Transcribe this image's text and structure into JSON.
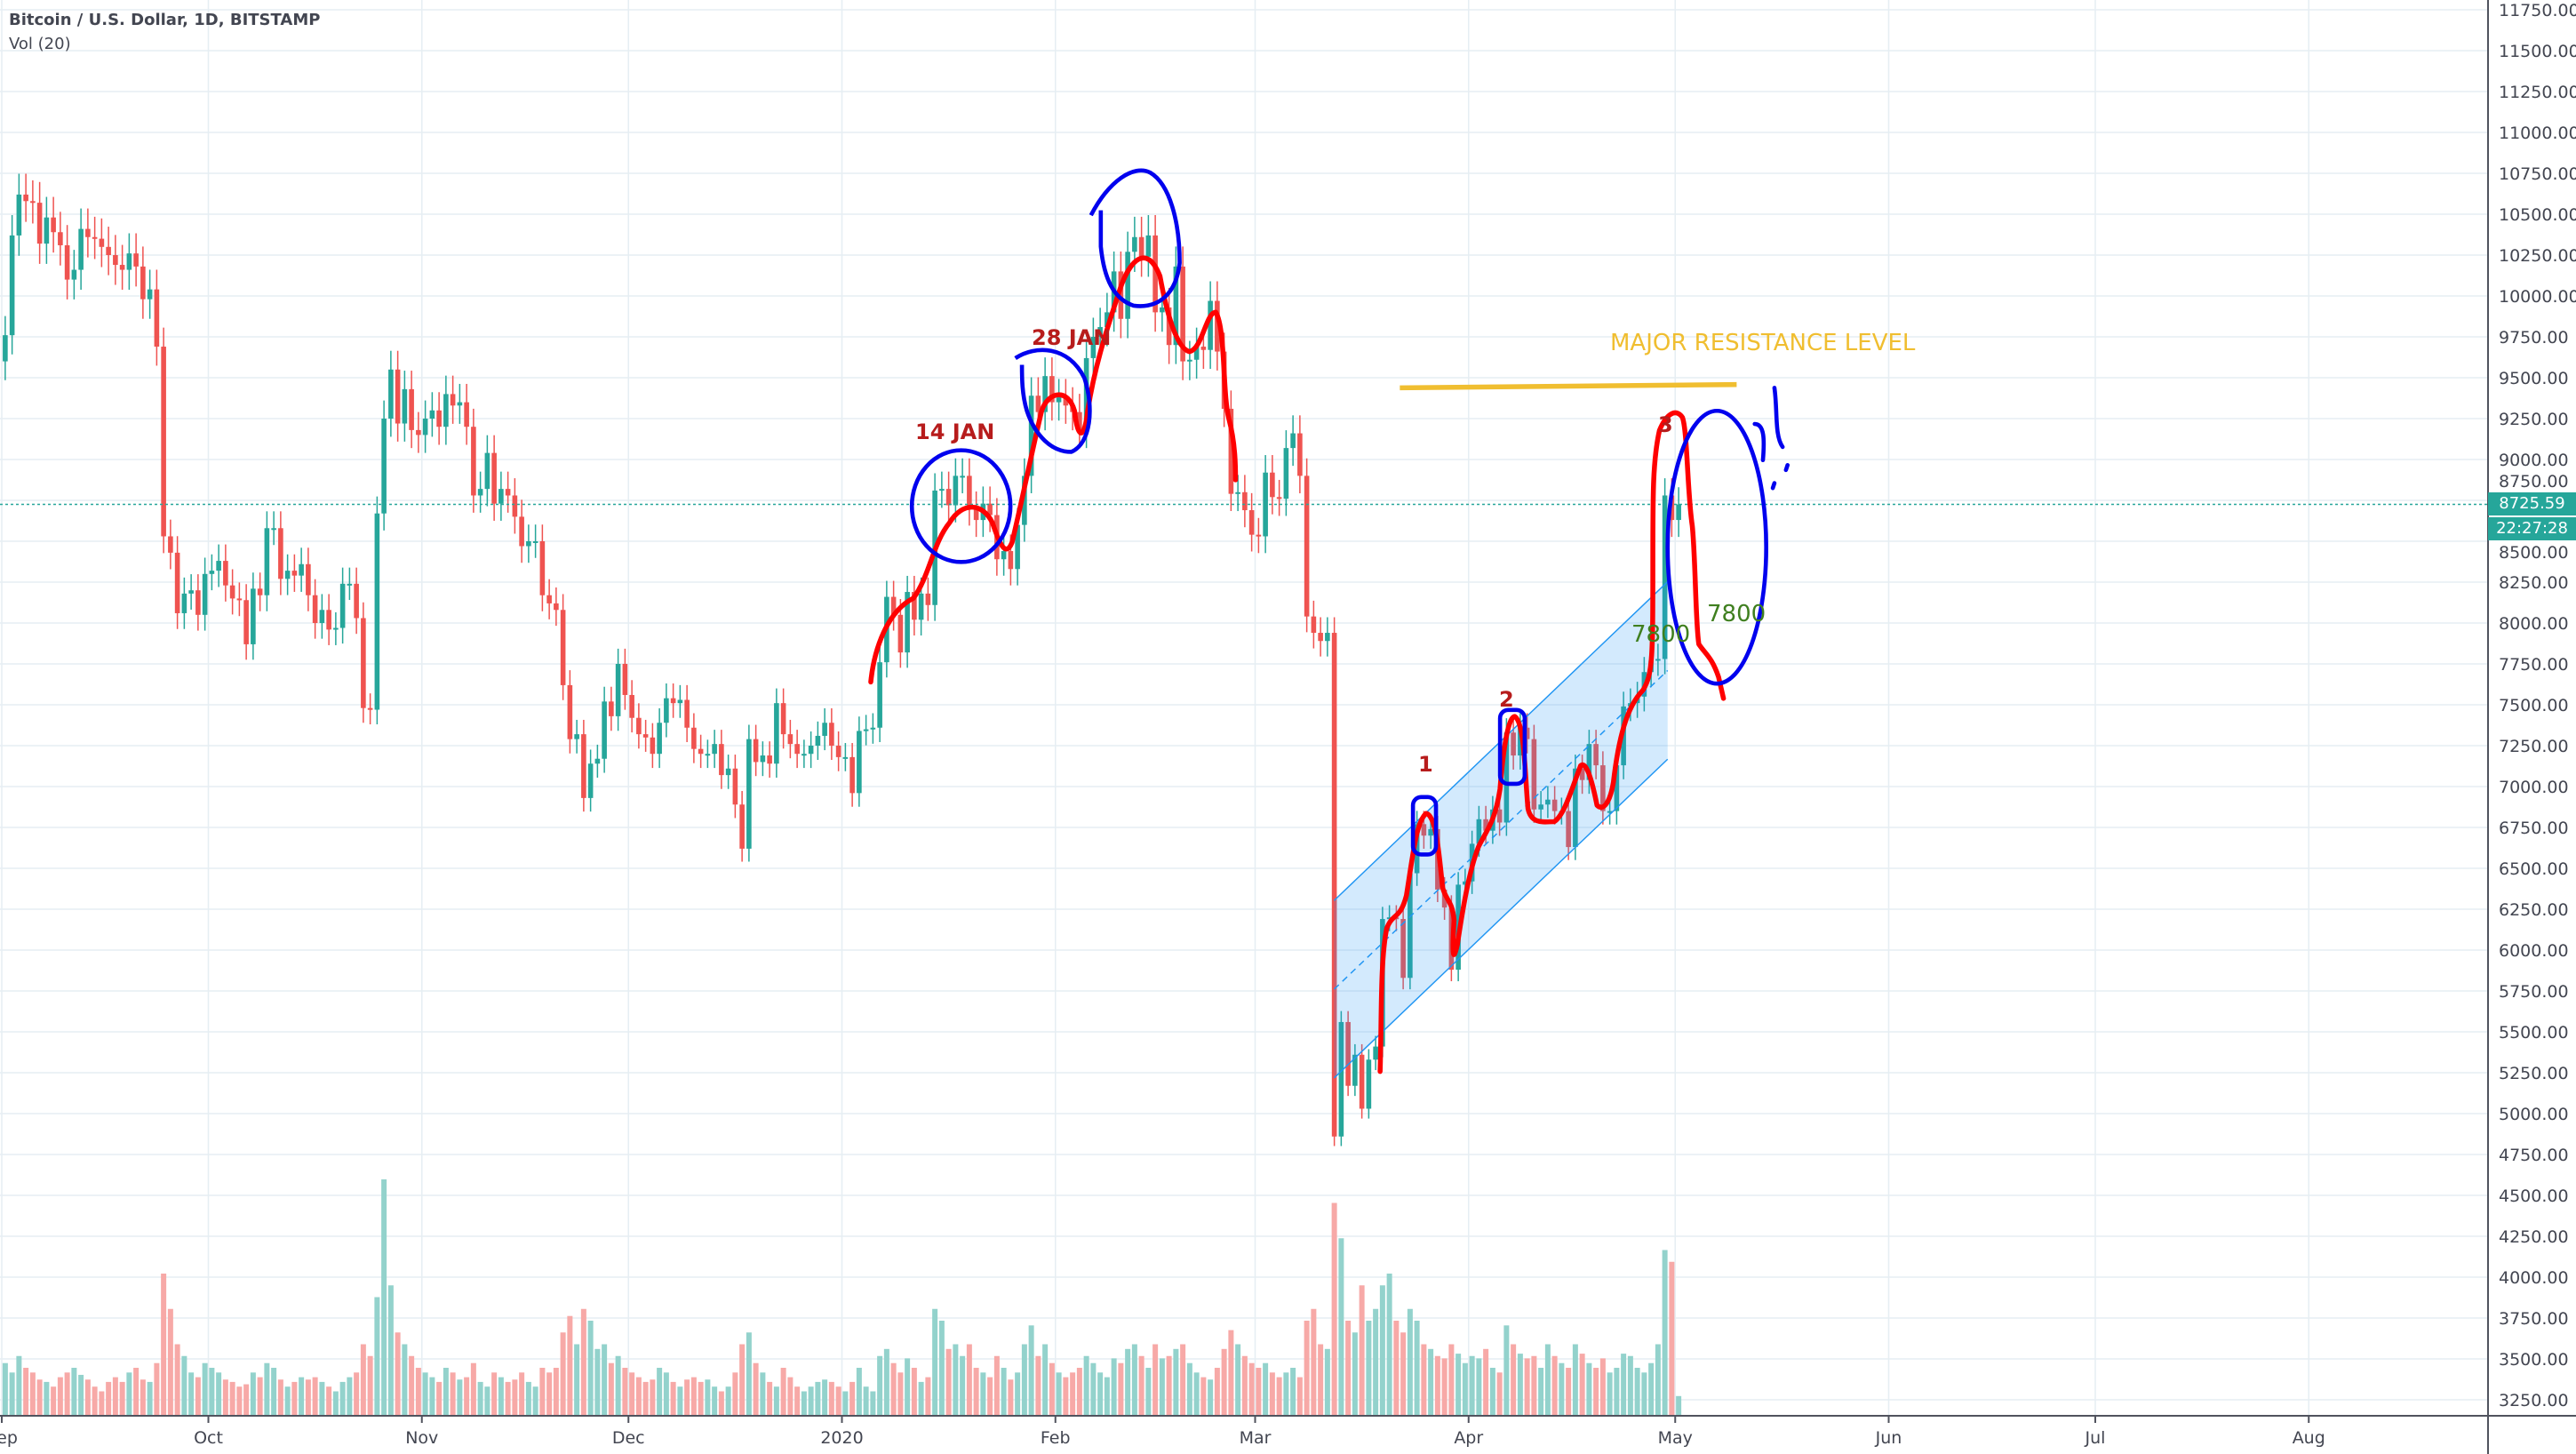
{
  "header": {
    "title": "Bitcoin / U.S. Dollar, 1D, BITSTAMP",
    "volume_indicator": "Vol (20)"
  },
  "price_tag": {
    "last_price": "8725.59",
    "countdown": "22:27:28",
    "color": "#26a69a"
  },
  "colors": {
    "up": "#26a69a",
    "down": "#ef5350",
    "up_volume": "#93d2cc",
    "down_volume": "#f7a9a7",
    "grid": "#e6eef3",
    "resistance": "#f0be30",
    "annotation_red": "#ff0000",
    "annotation_blue": "#0000ee",
    "channel": "#2196f3",
    "label_red": "#b71c1c",
    "label_green": "#3f7f1f"
  },
  "annotations": {
    "resistance_label": "MAJOR RESISTANCE LEVEL",
    "resistance_price": 9480,
    "label_14jan": "14 JAN",
    "label_28jan": "28 JAN",
    "wave_1": "1",
    "wave_2": "2",
    "wave_3": "3",
    "target_a": "7800",
    "target_b": "7800"
  },
  "chart_data": {
    "type": "candlestick",
    "title": "Bitcoin / U.S. Dollar, 1D, BITSTAMP",
    "start_date": "2019-09-01",
    "ylim": [
      3250,
      11750
    ],
    "y_ticks": [
      "11750.00",
      "11500.00",
      "11250.00",
      "11000.00",
      "10750.00",
      "10500.00",
      "10250.00",
      "10000.00",
      "9750.00",
      "9500.00",
      "9250.00",
      "9000.00",
      "8750.00",
      "8500.00",
      "8250.00",
      "8000.00",
      "7750.00",
      "7500.00",
      "7250.00",
      "7000.00",
      "6750.00",
      "6500.00",
      "6250.00",
      "6000.00",
      "5750.00",
      "5500.00",
      "5250.00",
      "5000.00",
      "4750.00",
      "4500.00",
      "4250.00",
      "4000.00",
      "3750.00",
      "3500.00",
      "3250.00"
    ],
    "x_ticks": [
      "Sep",
      "Oct",
      "Nov",
      "Dec",
      "2020",
      "Feb",
      "Mar",
      "Apr",
      "May",
      "Jun",
      "Jul",
      "Aug"
    ],
    "grid": true,
    "first_open": 9600,
    "closes": [
      9760,
      10370,
      10620,
      10580,
      10570,
      10320,
      10480,
      10390,
      10310,
      10100,
      10160,
      10410,
      10360,
      10350,
      10300,
      10250,
      10190,
      10160,
      10260,
      10180,
      9980,
      10040,
      9690,
      8530,
      8430,
      8060,
      8180,
      8200,
      8050,
      8300,
      8320,
      8380,
      8230,
      8150,
      8140,
      7870,
      8210,
      8170,
      8580,
      8580,
      8270,
      8320,
      8290,
      8360,
      8170,
      8000,
      8080,
      7960,
      7970,
      8240,
      8240,
      8030,
      7480,
      7470,
      8670,
      9250,
      9550,
      9220,
      9430,
      9180,
      9150,
      9250,
      9300,
      9200,
      9400,
      9330,
      9350,
      9200,
      8780,
      8820,
      9040,
      8730,
      8820,
      8780,
      8650,
      8470,
      8500,
      8500,
      8170,
      8120,
      8080,
      7620,
      7290,
      7320,
      6930,
      7140,
      7170,
      7520,
      7430,
      7750,
      7560,
      7420,
      7320,
      7300,
      7200,
      7390,
      7540,
      7510,
      7530,
      7360,
      7230,
      7200,
      7200,
      7260,
      7070,
      7110,
      6890,
      6620,
      7290,
      7150,
      7190,
      7140,
      7510,
      7320,
      7260,
      7200,
      7200,
      7250,
      7310,
      7390,
      7250,
      7180,
      7180,
      6960,
      7340,
      7350,
      7360,
      7760,
      8160,
      8050,
      7820,
      8190,
      8020,
      8180,
      8110,
      8810,
      8820,
      8720,
      8900,
      8900,
      8700,
      8630,
      8730,
      8660,
      8390,
      8440,
      8330,
      8600,
      8900,
      9390,
      9290,
      9510,
      9350,
      9380,
      9330,
      9290,
      9180,
      9620,
      9750,
      9810,
      9900,
      10150,
      9860,
      10270,
      10360,
      10240,
      10370,
      9900,
      9930,
      9700,
      10180,
      9600,
      9610,
      9690,
      9670,
      9970,
      9660,
      9310,
      8790,
      8800,
      8690,
      8540,
      8530,
      8920,
      8770,
      8760,
      9070,
      9160,
      8900,
      8040,
      7940,
      7890,
      7940,
      4860,
      5560,
      5170,
      5360,
      5030,
      5330,
      5410,
      6190,
      6200,
      6190,
      5830,
      6470,
      6770,
      6700,
      6740,
      6370,
      6260,
      5880,
      6400,
      6420,
      6650,
      6800,
      6730,
      6860,
      6780,
      7330,
      7190,
      7360,
      7290,
      6860,
      6890,
      6920,
      6850,
      6850,
      6630,
      7110,
      7040,
      7260,
      7130,
      6850,
      6850,
      7130,
      7490,
      7510,
      7550,
      7700,
      7770,
      7780,
      8780,
      8630,
      8725.59
    ],
    "volumes": [
      22,
      18,
      25,
      20,
      18,
      15,
      14,
      12,
      16,
      18,
      20,
      17,
      15,
      12,
      10,
      14,
      16,
      14,
      18,
      20,
      15,
      14,
      22,
      60,
      45,
      30,
      25,
      18,
      16,
      22,
      20,
      18,
      15,
      14,
      12,
      13,
      18,
      16,
      22,
      20,
      15,
      12,
      14,
      16,
      15,
      16,
      14,
      12,
      10,
      14,
      16,
      18,
      30,
      25,
      50,
      100,
      55,
      35,
      30,
      25,
      20,
      18,
      16,
      14,
      20,
      18,
      15,
      16,
      22,
      14,
      12,
      18,
      16,
      14,
      15,
      18,
      14,
      12,
      20,
      18,
      20,
      35,
      42,
      30,
      45,
      40,
      28,
      30,
      22,
      25,
      20,
      18,
      16,
      14,
      15,
      20,
      18,
      14,
      12,
      15,
      16,
      14,
      15,
      12,
      10,
      12,
      18,
      30,
      35,
      22,
      18,
      14,
      12,
      20,
      16,
      12,
      10,
      12,
      14,
      15,
      14,
      12,
      10,
      14,
      20,
      12,
      10,
      25,
      28,
      22,
      18,
      24,
      20,
      14,
      16,
      45,
      40,
      28,
      30,
      25,
      30,
      20,
      18,
      16,
      25,
      20,
      15,
      18,
      30,
      38,
      25,
      30,
      22,
      18,
      16,
      18,
      20,
      25,
      22,
      18,
      16,
      24,
      22,
      28,
      30,
      25,
      20,
      30,
      24,
      25,
      28,
      30,
      22,
      18,
      16,
      15,
      20,
      28,
      36,
      30,
      25,
      22,
      20,
      22,
      18,
      16,
      18,
      20,
      16,
      40,
      45,
      30,
      28,
      90,
      75,
      40,
      35,
      55,
      40,
      45,
      55,
      60,
      40,
      35,
      45,
      40,
      30,
      28,
      25,
      24,
      30,
      26,
      22,
      25,
      24,
      28,
      20,
      18,
      38,
      30,
      26,
      24,
      25,
      20,
      30,
      25,
      22,
      20,
      30,
      26,
      22,
      20,
      24,
      18,
      20,
      26,
      25,
      20,
      18,
      22,
      30,
      70,
      65,
      8
    ]
  }
}
